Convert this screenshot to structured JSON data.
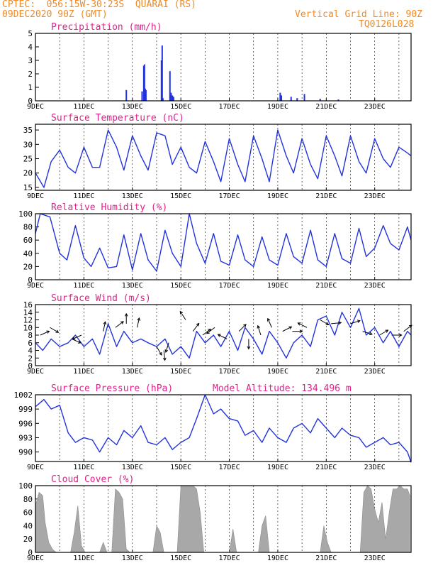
{
  "header": {
    "left_line1": "CPTEC:  056:15W-30:23S  QUARAI (RS)",
    "left_line2": "09DEC2020 90Z (GMT)",
    "right_line1": "Vertical Grid Line: 90Z",
    "right_line2": "TQ0126L028"
  },
  "colors": {
    "header": "#f08a24",
    "title": "#e0218a",
    "series": "#2233dd",
    "cloud": "#a8a8a8",
    "frame": "#000000"
  },
  "x_axis": {
    "labels": [
      "9DEC",
      "11DEC",
      "13DEC",
      "15DEC",
      "17DEC",
      "19DEC",
      "21DEC",
      "23DEC"
    ],
    "label_days": [
      0,
      2,
      4,
      6,
      8,
      10,
      12,
      14
    ],
    "start": "09DEC2020",
    "end_day": 15.5
  },
  "chart_data": [
    {
      "type": "bar",
      "title": "Precipitation (mm/h)",
      "ylim": [
        0,
        5
      ],
      "yticks": [
        0,
        1,
        2,
        3,
        4,
        5
      ],
      "x_day": [
        3.75,
        4.4,
        4.47,
        4.5,
        4.53,
        4.56,
        5.2,
        5.23,
        5.26,
        5.55,
        5.6,
        5.65,
        5.7,
        10.1,
        10.15,
        10.55,
        10.8,
        11.1,
        11.75,
        12.5
      ],
      "values": [
        0.8,
        0.7,
        2.6,
        2.7,
        0.9,
        0.8,
        3.0,
        4.1,
        0.2,
        2.2,
        0.6,
        0.4,
        0.3,
        0.6,
        0.4,
        0.3,
        0.2,
        0.5,
        0.15,
        0.1
      ]
    },
    {
      "type": "line",
      "title": "Surface Temperature (nC)",
      "ylim": [
        14,
        37
      ],
      "yticks": [
        15,
        20,
        25,
        30,
        35
      ],
      "x_day": [
        0,
        0.35,
        0.65,
        1.0,
        1.35,
        1.65,
        2.0,
        2.35,
        2.65,
        3.0,
        3.35,
        3.65,
        4.0,
        4.35,
        4.65,
        5.0,
        5.35,
        5.65,
        6.0,
        6.35,
        6.65,
        7.0,
        7.35,
        7.65,
        8.0,
        8.35,
        8.65,
        9.0,
        9.35,
        9.65,
        10.0,
        10.35,
        10.65,
        11.0,
        11.35,
        11.65,
        12.0,
        12.35,
        12.65,
        13.0,
        13.35,
        13.65,
        14.0,
        14.35,
        14.65,
        15.0,
        15.35,
        15.5
      ],
      "values": [
        20,
        15,
        24,
        28,
        22,
        20,
        29,
        22,
        22,
        35,
        29,
        21,
        33,
        26,
        21,
        34,
        33,
        23,
        29,
        22,
        20,
        31,
        24,
        17,
        32,
        23,
        17,
        33,
        25,
        17,
        35,
        26,
        20,
        32,
        23,
        18,
        33,
        26,
        19,
        33,
        24,
        20,
        32,
        25,
        22,
        29,
        27,
        26
      ]
    },
    {
      "type": "line",
      "title": "Relative Humidity (%)",
      "ylim": [
        0,
        100
      ],
      "yticks": [
        0,
        20,
        40,
        60,
        80,
        100
      ],
      "x_day": [
        0,
        0.2,
        0.6,
        1.0,
        1.3,
        1.65,
        2.0,
        2.3,
        2.65,
        3.0,
        3.35,
        3.65,
        4.0,
        4.35,
        4.65,
        5.0,
        5.35,
        5.65,
        6.0,
        6.35,
        6.65,
        7.0,
        7.35,
        7.65,
        8.0,
        8.35,
        8.65,
        9.0,
        9.35,
        9.65,
        10.0,
        10.35,
        10.65,
        11.0,
        11.35,
        11.65,
        12.0,
        12.35,
        12.65,
        13.0,
        13.35,
        13.65,
        14.0,
        14.35,
        14.65,
        15.0,
        15.35,
        15.5
      ],
      "values": [
        70,
        100,
        95,
        40,
        30,
        82,
        33,
        20,
        48,
        18,
        20,
        68,
        15,
        70,
        30,
        13,
        75,
        40,
        20,
        100,
        55,
        25,
        70,
        28,
        22,
        68,
        30,
        20,
        65,
        30,
        22,
        70,
        35,
        25,
        75,
        30,
        20,
        70,
        32,
        25,
        78,
        35,
        48,
        82,
        55,
        45,
        80,
        60
      ]
    },
    {
      "type": "line",
      "title": "Surface Wind (m/s)",
      "ylim": [
        0,
        16
      ],
      "yticks": [
        0,
        2,
        4,
        6,
        8,
        10,
        12,
        14,
        16
      ],
      "x_day": [
        0,
        0.3,
        0.65,
        1.0,
        1.35,
        1.65,
        2.0,
        2.35,
        2.65,
        3.0,
        3.35,
        3.65,
        4.0,
        4.35,
        4.65,
        5.0,
        5.35,
        5.65,
        6.0,
        6.35,
        6.65,
        7.0,
        7.35,
        7.65,
        8.0,
        8.35,
        8.65,
        9.0,
        9.35,
        9.65,
        10.0,
        10.35,
        10.65,
        11.0,
        11.35,
        11.65,
        12.0,
        12.35,
        12.65,
        13.0,
        13.35,
        13.65,
        14.0,
        14.35,
        14.65,
        15.0,
        15.35,
        15.5
      ],
      "values": [
        6,
        4,
        7,
        5,
        6,
        8,
        5,
        7,
        3,
        11,
        5,
        9,
        6,
        7,
        6,
        5,
        7,
        3,
        5,
        2,
        9,
        6,
        8,
        5,
        9,
        4,
        10,
        7,
        3,
        9,
        6,
        2,
        6,
        8,
        5,
        12,
        13,
        8,
        14,
        10,
        15,
        8,
        10,
        6,
        9,
        5,
        9,
        8
      ],
      "arrows": [
        {
          "day": 0.2,
          "speed": 8,
          "dx": 0.9,
          "dy": 0.4
        },
        {
          "day": 0.6,
          "speed": 10,
          "dx": 0.85,
          "dy": -0.5
        },
        {
          "day": 1.5,
          "speed": 7,
          "dx": 0.9,
          "dy": -0.4
        },
        {
          "day": 1.9,
          "speed": 8,
          "dx": -0.9,
          "dy": -0.4
        },
        {
          "day": 2.8,
          "speed": 9,
          "dx": 0.2,
          "dy": 0.95
        },
        {
          "day": 3.3,
          "speed": 10,
          "dx": 0.8,
          "dy": 0.6
        },
        {
          "day": 3.75,
          "speed": 11,
          "dx": 0.0,
          "dy": 1.0
        },
        {
          "day": 4.2,
          "speed": 10,
          "dx": 0.2,
          "dy": 0.95
        },
        {
          "day": 5.0,
          "speed": 5,
          "dx": 0.5,
          "dy": -0.85
        },
        {
          "day": 5.3,
          "speed": 4,
          "dx": 0.1,
          "dy": -1.0
        },
        {
          "day": 5.5,
          "speed": 6,
          "dx": -0.3,
          "dy": -0.95
        },
        {
          "day": 6.2,
          "speed": 12,
          "dx": -0.55,
          "dy": 0.85
        },
        {
          "day": 6.5,
          "speed": 9,
          "dx": 0.6,
          "dy": 0.8
        },
        {
          "day": 6.9,
          "speed": 8,
          "dx": 0.8,
          "dy": 0.6
        },
        {
          "day": 7.4,
          "speed": 10,
          "dx": -0.8,
          "dy": -0.6
        },
        {
          "day": 7.9,
          "speed": 7,
          "dx": -0.9,
          "dy": 0.45
        },
        {
          "day": 8.4,
          "speed": 9,
          "dx": 0.7,
          "dy": 0.7
        },
        {
          "day": 8.8,
          "speed": 7,
          "dx": 0.0,
          "dy": -1.0
        },
        {
          "day": 9.3,
          "speed": 8,
          "dx": -0.3,
          "dy": 0.95
        },
        {
          "day": 9.75,
          "speed": 10,
          "dx": -0.4,
          "dy": 0.9
        },
        {
          "day": 10.2,
          "speed": 9,
          "dx": 0.9,
          "dy": 0.45
        },
        {
          "day": 10.6,
          "speed": 9,
          "dx": 1.0,
          "dy": 0.0
        },
        {
          "day": 11.2,
          "speed": 10,
          "dx": -0.9,
          "dy": 0.45
        },
        {
          "day": 11.75,
          "speed": 12,
          "dx": 0.85,
          "dy": -0.5
        },
        {
          "day": 12.2,
          "speed": 11,
          "dx": 1.0,
          "dy": 0.1
        },
        {
          "day": 13.0,
          "speed": 11,
          "dx": 0.95,
          "dy": 0.3
        },
        {
          "day": 13.5,
          "speed": 9,
          "dx": 0.95,
          "dy": -0.3
        },
        {
          "day": 14.2,
          "speed": 8,
          "dx": 0.85,
          "dy": 0.5
        },
        {
          "day": 14.7,
          "speed": 8,
          "dx": 1.0,
          "dy": 0.0
        },
        {
          "day": 15.2,
          "speed": 9,
          "dx": 0.8,
          "dy": 0.6
        }
      ]
    },
    {
      "type": "line",
      "title": "Surface Pressure (hPa)",
      "subtitle": "Model Altitude: 134.496  m",
      "ylim": [
        988,
        1002
      ],
      "yticks": [
        990,
        993,
        996,
        999,
        1002
      ],
      "x_day": [
        0,
        0.35,
        0.65,
        1.0,
        1.35,
        1.65,
        2.0,
        2.35,
        2.65,
        3.0,
        3.35,
        3.65,
        4.0,
        4.35,
        4.65,
        5.0,
        5.35,
        5.65,
        6.0,
        6.35,
        6.65,
        7.0,
        7.35,
        7.65,
        8.0,
        8.35,
        8.65,
        9.0,
        9.35,
        9.65,
        10.0,
        10.35,
        10.65,
        11.0,
        11.35,
        11.65,
        12.0,
        12.35,
        12.65,
        13.0,
        13.35,
        13.65,
        14.0,
        14.35,
        14.65,
        15.0,
        15.35,
        15.5
      ],
      "values": [
        999.5,
        1001,
        999,
        999.8,
        994,
        992,
        993,
        992.5,
        990,
        993,
        991.5,
        994.5,
        993,
        995.5,
        992,
        991.5,
        993,
        990.5,
        992,
        993,
        997,
        1002,
        998,
        999,
        997,
        996.5,
        993.5,
        994.5,
        992,
        995,
        993,
        992,
        995,
        996,
        994,
        997,
        995,
        993,
        995,
        993.5,
        993,
        991,
        992,
        993,
        991.5,
        992,
        990,
        987.8
      ]
    },
    {
      "type": "area",
      "title": "Cloud Cover (%)",
      "ylim": [
        0,
        100
      ],
      "yticks": [
        0,
        20,
        40,
        60,
        80,
        100
      ],
      "x_day": [
        0.0,
        0.15,
        0.3,
        0.4,
        0.55,
        0.7,
        0.85,
        1.0,
        1.15,
        1.3,
        1.45,
        1.6,
        1.75,
        1.9,
        2.05,
        2.2,
        2.35,
        2.5,
        2.65,
        2.8,
        2.95,
        3.05,
        3.15,
        3.3,
        3.45,
        3.6,
        3.75,
        3.9,
        4.05,
        4.2,
        4.35,
        4.5,
        4.6,
        4.7,
        4.85,
        5.0,
        5.15,
        5.3,
        5.45,
        5.55,
        5.7,
        5.85,
        6.0,
        6.15,
        6.3,
        6.5,
        6.65,
        6.8,
        6.95,
        7.1,
        7.25,
        7.4,
        7.55,
        7.7,
        7.85,
        8.0,
        8.15,
        8.3,
        8.45,
        8.6,
        8.75,
        8.9,
        9.05,
        9.2,
        9.35,
        9.5,
        9.65,
        9.8,
        9.95,
        10.1,
        10.25,
        10.4,
        10.55,
        10.7,
        10.85,
        11.0,
        11.15,
        11.3,
        11.45,
        11.6,
        11.75,
        11.9,
        12.05,
        12.2,
        12.35,
        12.5,
        12.65,
        12.8,
        12.95,
        13.1,
        13.25,
        13.4,
        13.55,
        13.7,
        13.85,
        14.0,
        14.15,
        14.3,
        14.45,
        14.6,
        14.75,
        14.9,
        15.05,
        15.2,
        15.35,
        15.45
      ],
      "values": [
        70,
        90,
        85,
        45,
        15,
        5,
        0,
        0,
        0,
        0,
        0,
        30,
        70,
        10,
        0,
        0,
        0,
        0,
        0,
        15,
        0,
        0,
        0,
        95,
        90,
        80,
        5,
        0,
        0,
        0,
        0,
        0,
        0,
        0,
        0,
        40,
        30,
        0,
        0,
        0,
        0,
        0,
        100,
        100,
        100,
        100,
        95,
        60,
        0,
        0,
        0,
        0,
        0,
        0,
        0,
        0,
        35,
        0,
        0,
        0,
        0,
        0,
        0,
        0,
        40,
        55,
        0,
        0,
        0,
        0,
        0,
        0,
        0,
        0,
        0,
        0,
        0,
        0,
        0,
        0,
        0,
        40,
        15,
        0,
        0,
        0,
        0,
        0,
        0,
        0,
        0,
        0,
        90,
        100,
        95,
        65,
        45,
        75,
        20,
        60,
        95,
        95,
        100,
        95,
        95,
        85
      ]
    }
  ]
}
